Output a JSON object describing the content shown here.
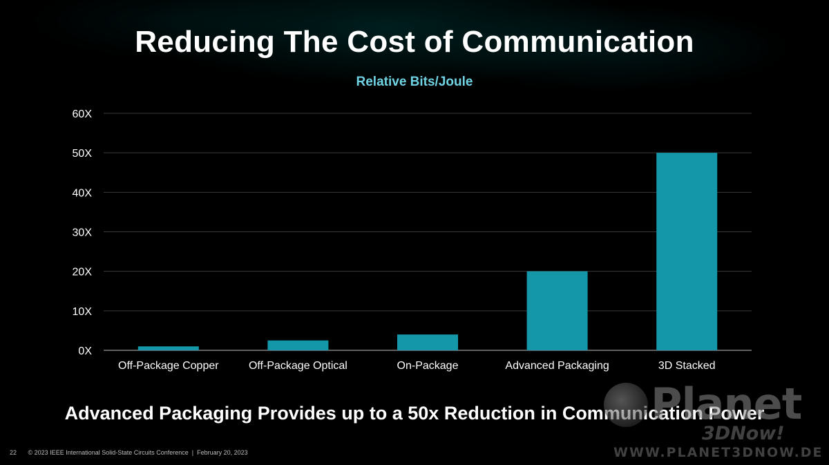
{
  "slide": {
    "title": "Reducing The Cost of Communication",
    "takeaway": "Advanced Packaging Provides up to a 50x Reduction in Communication Power",
    "page_number": "22",
    "copyright": "© 2023 IEEE International Solid-State Circuits Conference",
    "separator": "|",
    "date": "February 20, 2023"
  },
  "watermark": {
    "name": "Planet",
    "sub": "3DNow!",
    "url": "WWW.PLANET3DNOW.DE"
  },
  "colors": {
    "bar": "#1497a8",
    "subtitle": "#6fd3e3",
    "grid": "#3a3a3a",
    "axis": "#9a9a9a",
    "text": "#ffffff"
  },
  "chart_data": {
    "type": "bar",
    "title": "Relative Bits/Joule",
    "categories": [
      "Off-Package Copper",
      "Off-Package Optical",
      "On-Package",
      "Advanced Packaging",
      "3D Stacked"
    ],
    "values": [
      1,
      2.5,
      4,
      20,
      50
    ],
    "ylim": [
      0,
      60
    ],
    "yticks": [
      0,
      10,
      20,
      30,
      40,
      50,
      60
    ],
    "ytick_labels": [
      "0X",
      "10X",
      "20X",
      "30X",
      "40X",
      "50X",
      "60X"
    ],
    "xlabel": "",
    "ylabel": "",
    "grid": true,
    "legend": "none"
  }
}
